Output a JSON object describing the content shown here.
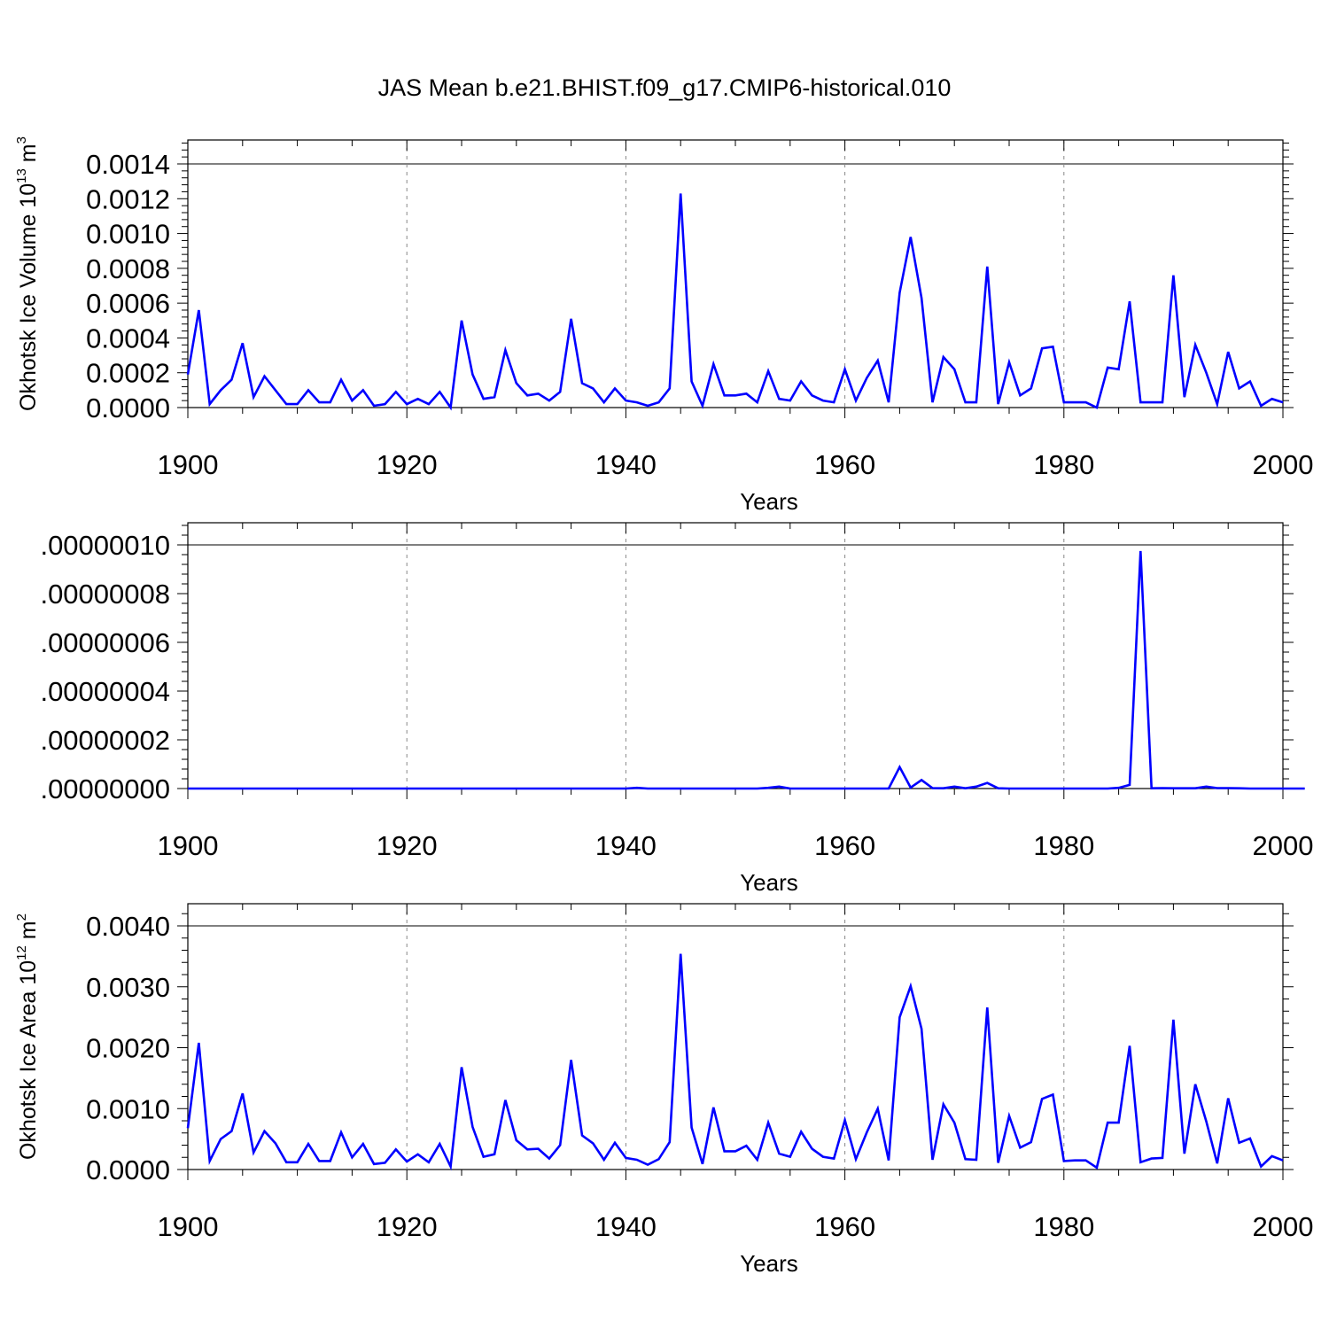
{
  "title": "JAS Mean b.e21.BHIST.f09_g17.CMIP6-historical.010",
  "colors": {
    "line": "#0000ff",
    "axis": "#000000",
    "grid": "#888888"
  },
  "chart_data": [
    {
      "type": "line",
      "ylabel_main": "Okhotsk Ice Volume 10",
      "ylabel_sup": "13",
      "ylabel_unit": " m",
      "ylabel_unit_sup": "3",
      "xlabel": "Years",
      "xlim": [
        1900,
        2000
      ],
      "ylim": [
        0,
        0.0014
      ],
      "xticks": [
        1900,
        1920,
        1940,
        1960,
        1980,
        2000
      ],
      "xtick_labels": [
        "1900",
        "1920",
        "1940",
        "1960",
        "1980",
        "2000"
      ],
      "yticks": [
        0,
        0.0002,
        0.0004,
        0.0006,
        0.0008,
        0.001,
        0.0012,
        0.0014
      ],
      "ytick_labels": [
        "0.0000",
        "0.0002",
        "0.0004",
        "0.0006",
        "0.0008",
        "0.0010",
        "0.0012",
        "0.0014"
      ],
      "x_start": 1900,
      "values": [
        0.00019,
        0.00056,
        2e-05,
        0.0001,
        0.00016,
        0.00037,
        6e-05,
        0.00018,
        0.0001,
        2e-05,
        2e-05,
        0.0001,
        3e-05,
        3e-05,
        0.00016,
        4e-05,
        0.0001,
        1e-05,
        2e-05,
        9e-05,
        2e-05,
        5e-05,
        2e-05,
        9e-05,
        0.0,
        0.0005,
        0.00019,
        5e-05,
        6e-05,
        0.00033,
        0.00014,
        7e-05,
        8e-05,
        4e-05,
        9e-05,
        0.00051,
        0.00014,
        0.00011,
        3e-05,
        0.00011,
        4e-05,
        3e-05,
        1e-05,
        3e-05,
        0.00011,
        0.00123,
        0.00015,
        1e-05,
        0.00025,
        7e-05,
        7e-05,
        8e-05,
        3e-05,
        0.00021,
        5e-05,
        4e-05,
        0.00015,
        7e-05,
        4e-05,
        3e-05,
        0.00022,
        4e-05,
        0.00017,
        0.00027,
        3e-05,
        0.00066,
        0.00098,
        0.00063,
        3e-05,
        0.00029,
        0.00022,
        3e-05,
        3e-05,
        0.00081,
        2e-05,
        0.00026,
        7e-05,
        0.00011,
        0.00034,
        0.00035,
        3e-05,
        3e-05,
        3e-05,
        0.0,
        0.00023,
        0.00022,
        0.00061,
        3e-05,
        3e-05,
        3e-05,
        0.00076,
        6e-05,
        0.00036,
        0.0002,
        2e-05,
        0.00032,
        0.00011,
        0.00015,
        1e-05,
        5e-05,
        3e-05
      ]
    },
    {
      "type": "line",
      "xlabel": "Years",
      "xlim": [
        1900,
        2000
      ],
      "ylim": [
        0,
        1e-07
      ],
      "xticks": [
        1900,
        1920,
        1940,
        1960,
        1980,
        2000
      ],
      "xtick_labels": [
        "1900",
        "1920",
        "1940",
        "1960",
        "1980",
        "2000"
      ],
      "yticks": [
        0,
        2e-08,
        4e-08,
        6e-08,
        8e-08,
        1e-07
      ],
      "ytick_labels": [
        ".00000000",
        ".00000002",
        ".00000004",
        ".00000006",
        ".00000008",
        ".00000010"
      ],
      "x_start": 1900,
      "values": [
        0,
        0,
        0,
        0,
        0,
        0,
        0,
        0,
        0,
        0,
        0,
        0,
        0,
        0,
        0,
        0,
        0,
        0,
        0,
        0,
        0,
        0,
        0,
        0,
        0,
        0,
        0,
        0,
        0,
        0,
        0,
        0,
        0,
        0,
        0,
        0,
        0,
        0,
        0,
        0,
        0,
        3e-10,
        0,
        0,
        0,
        0,
        0,
        0,
        0,
        0,
        0,
        0,
        0,
        3e-10,
        8e-10,
        0,
        0,
        0,
        0,
        0,
        0,
        0,
        0,
        0,
        0,
        8.8e-09,
        4e-10,
        3.5e-09,
        2e-10,
        1e-10,
        8e-10,
        1e-10,
        8e-10,
        2.3e-09,
        1e-10,
        0,
        0,
        0,
        0,
        0,
        0,
        0,
        0,
        0,
        0,
        3e-10,
        1.5e-09,
        9.75e-08,
        1e-10,
        2e-10,
        1e-10,
        1e-10,
        1e-10,
        8e-10,
        2e-10,
        2e-10,
        1e-10,
        0,
        0,
        0,
        0,
        0,
        0
      ]
    },
    {
      "type": "line",
      "ylabel_main": "Okhotsk Ice Area 10",
      "ylabel_sup": "12",
      "ylabel_unit": " m",
      "ylabel_unit_sup": "2",
      "xlabel": "Years",
      "xlim": [
        1900,
        2000
      ],
      "ylim": [
        0,
        0.004
      ],
      "xticks": [
        1900,
        1920,
        1940,
        1960,
        1980,
        2000
      ],
      "xtick_labels": [
        "1900",
        "1920",
        "1940",
        "1960",
        "1980",
        "2000"
      ],
      "yticks": [
        0,
        0.001,
        0.002,
        0.003,
        0.004
      ],
      "ytick_labels": [
        "0.0000",
        "0.0010",
        "0.0020",
        "0.0030",
        "0.0040"
      ],
      "x_start": 1900,
      "values": [
        0.00068,
        0.00208,
        0.00014,
        0.0005,
        0.00063,
        0.00125,
        0.00028,
        0.00063,
        0.00043,
        0.00012,
        0.00012,
        0.00042,
        0.00014,
        0.00014,
        0.00061,
        0.0002,
        0.00042,
        9e-05,
        0.00011,
        0.00033,
        0.00013,
        0.00025,
        0.00012,
        0.00042,
        5e-05,
        0.00168,
        0.0007,
        0.00021,
        0.00025,
        0.00114,
        0.00048,
        0.00033,
        0.00034,
        0.00018,
        0.0004,
        0.0018,
        0.00056,
        0.00043,
        0.00016,
        0.00044,
        0.00019,
        0.00016,
        8e-05,
        0.00017,
        0.00045,
        0.00354,
        0.00069,
        9e-05,
        0.00102,
        0.0003,
        0.0003,
        0.00039,
        0.00016,
        0.00077,
        0.00026,
        0.00021,
        0.00062,
        0.00034,
        0.00021,
        0.00018,
        0.00081,
        0.00017,
        0.00061,
        0.001,
        0.00015,
        0.0025,
        0.00301,
        0.00231,
        0.00016,
        0.00107,
        0.00077,
        0.00017,
        0.00016,
        0.00266,
        0.00011,
        0.00088,
        0.00036,
        0.00045,
        0.00116,
        0.00123,
        0.00014,
        0.00015,
        0.00015,
        3e-05,
        0.00077,
        0.00077,
        0.00203,
        0.00012,
        0.00018,
        0.00019,
        0.00246,
        0.00026,
        0.0014,
        0.00079,
        0.0001,
        0.00117,
        0.00044,
        0.00051,
        5e-05,
        0.00022,
        0.00015
      ]
    }
  ]
}
